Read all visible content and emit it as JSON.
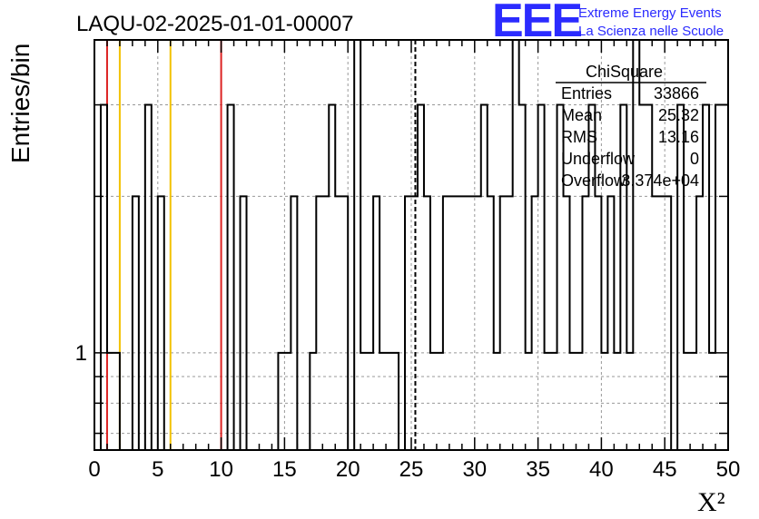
{
  "chart_data": {
    "type": "histogram",
    "title": "LAQU-02-2025-01-01-00007",
    "xlabel": "X²",
    "ylabel": "Entries/bin",
    "xlim": [
      0,
      50
    ],
    "ylim": [
      0.65,
      4.0
    ],
    "yscale": "log",
    "grid": true,
    "bin_width": 0.5,
    "x_ticks": [
      "0",
      "5",
      "10",
      "15",
      "20",
      "25",
      "30",
      "35",
      "40",
      "45",
      "50"
    ],
    "y_tick_labels": [
      {
        "value": 1,
        "label": "1"
      }
    ],
    "bin_contents": [
      0,
      3,
      1,
      1,
      0,
      0,
      2,
      0,
      3,
      0,
      2,
      0,
      0,
      0,
      0,
      0,
      0,
      0,
      0,
      0,
      0,
      3,
      0,
      2,
      0,
      0,
      0,
      0,
      0,
      1,
      1,
      2,
      0,
      0,
      1,
      2,
      2,
      3,
      2,
      2,
      0,
      4,
      1,
      1,
      2,
      1,
      1,
      1,
      0,
      2,
      2,
      3,
      2,
      1,
      1,
      2,
      2,
      2,
      2,
      2,
      2,
      3,
      2,
      1,
      2,
      2,
      4,
      3,
      1,
      2,
      3,
      1,
      1,
      3,
      2,
      1,
      1,
      2,
      3,
      2,
      1,
      2,
      1,
      3,
      1,
      4,
      3,
      3,
      2,
      2,
      2,
      0,
      3,
      1,
      1,
      2,
      3,
      1,
      3,
      3
    ],
    "vertical_lines": [
      {
        "x": 1,
        "color": "#dd2222"
      },
      {
        "x": 2,
        "color": "#f2c200"
      },
      {
        "x": 6,
        "color": "#f2c200"
      },
      {
        "x": 10,
        "color": "#dd2222"
      },
      {
        "x": 25.32,
        "color": "#000000",
        "style": "dashed"
      }
    ],
    "stats_box": {
      "title": "ChiSquare",
      "rows": [
        {
          "label": "Entries",
          "value": "33866"
        },
        {
          "label": "Mean",
          "value": "25.32"
        },
        {
          "label": "RMS",
          "value": "13.16"
        },
        {
          "label": "Underflow",
          "value": "0"
        },
        {
          "label": "Overflow",
          "value": "3.374e+04"
        }
      ]
    }
  },
  "logo": {
    "text": "EEE",
    "line1": "Extreme Energy Events",
    "line2": "La Scienza nelle Scuole",
    "color": "#2b2bff"
  }
}
